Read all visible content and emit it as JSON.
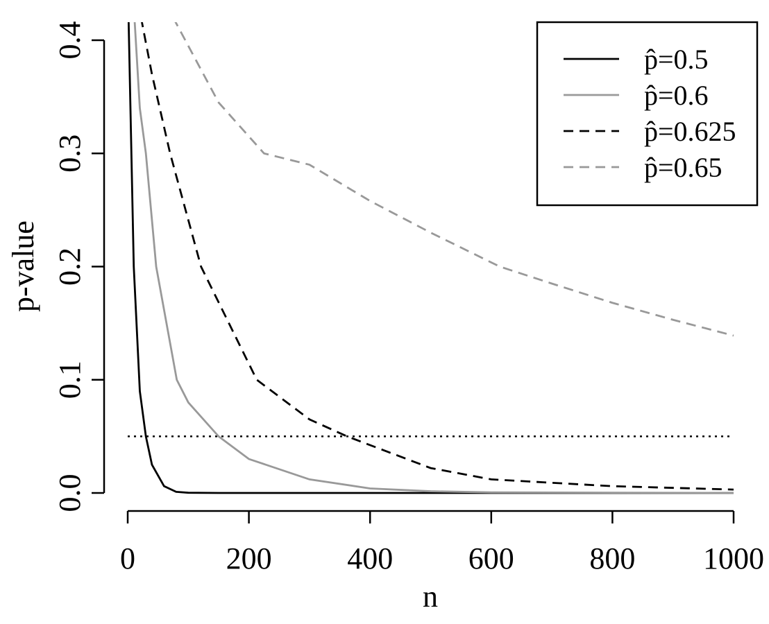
{
  "chart_data": {
    "type": "line",
    "x_label": "n",
    "y_label": "p-value",
    "xlim": [
      0,
      1000
    ],
    "xticks": [
      0,
      200,
      400,
      600,
      800,
      1000
    ],
    "ylim": [
      0,
      0.4
    ],
    "yticks": [
      {
        "value": 0,
        "label": "0.0"
      },
      0.1,
      0.2,
      0.3,
      0.4
    ],
    "legend": "top-right",
    "series": [
      {
        "name": "p̂=0.5",
        "color": "#000000",
        "linestyle": "solid",
        "x": [
          1,
          10,
          20,
          30,
          40,
          60,
          80,
          100,
          150,
          1000
        ],
        "values": [
          0.43,
          0.2,
          0.09,
          0.05,
          0.025,
          0.006,
          0.001,
          0.0002,
          0,
          0
        ]
      },
      {
        "name": "p̂=0.6",
        "color": "#999999",
        "linestyle": "solid",
        "x": [
          10,
          20,
          30,
          47,
          81,
          100,
          150,
          200,
          300,
          400,
          500,
          600,
          1000
        ],
        "values": [
          0.43,
          0.34,
          0.3,
          0.2,
          0.1,
          0.08,
          0.05,
          0.03,
          0.012,
          0.004,
          0.0015,
          0.0005,
          0
        ]
      },
      {
        "name": "p̂=0.625",
        "color": "#000000",
        "linestyle": "dashed",
        "x": [
          22,
          40,
          70,
          121,
          213,
          300,
          362,
          500,
          600,
          800,
          1000
        ],
        "values": [
          0.42,
          0.37,
          0.3,
          0.2,
          0.1,
          0.065,
          0.05,
          0.022,
          0.012,
          0.006,
          0.003
        ]
      },
      {
        "name": "p̂=0.65",
        "color": "#999999",
        "linestyle": "dashed",
        "x": [
          75,
          150,
          225,
          300,
          400,
          500,
          614,
          700,
          800,
          900,
          1000
        ],
        "values": [
          0.42,
          0.345,
          0.3,
          0.29,
          0.258,
          0.23,
          0.2,
          0.185,
          0.168,
          0.153,
          0.139
        ]
      }
    ],
    "hline": {
      "value": 0.05,
      "color": "#000000",
      "linestyle": "dotted"
    }
  }
}
